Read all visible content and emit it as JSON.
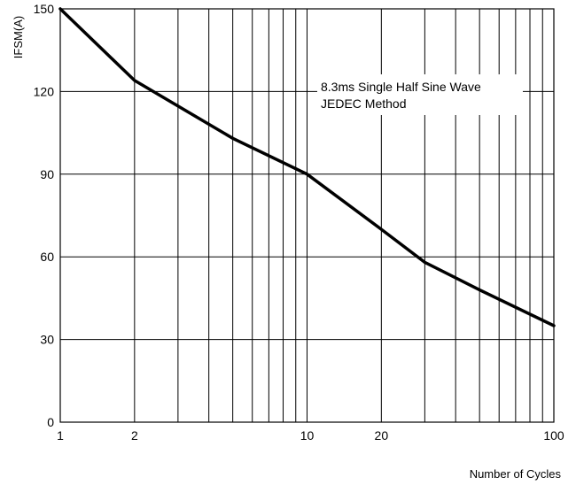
{
  "chart_data": {
    "type": "line",
    "title": "",
    "xlabel": "Number of Cycles",
    "ylabel": "IFSM(A)",
    "x_scale": "log",
    "xlim": [
      1,
      100
    ],
    "ylim": [
      0,
      150
    ],
    "x_ticks": [
      1,
      2,
      10,
      20,
      100
    ],
    "x_tick_labels": [
      "1",
      "2",
      "10",
      "20",
      "100"
    ],
    "y_ticks": [
      0,
      30,
      60,
      90,
      120,
      150
    ],
    "y_tick_labels": [
      "0",
      "30",
      "60",
      "90",
      "120",
      "150"
    ],
    "grid": true,
    "annotation": [
      "8.3ms Single Half Sine Wave",
      "JEDEC Method"
    ],
    "series": [
      {
        "x": [
          1,
          2,
          5,
          10,
          20,
          30,
          50,
          100
        ],
        "values": [
          150,
          124,
          103,
          90,
          70,
          58,
          48,
          35
        ]
      }
    ]
  }
}
